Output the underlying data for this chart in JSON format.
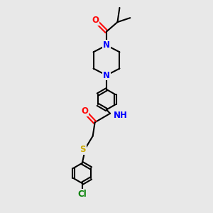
{
  "bg_color": "#e8e8e8",
  "bond_color": "#000000",
  "bond_width": 1.5,
  "atom_colors": {
    "N": "#0000FF",
    "O": "#FF0000",
    "S": "#CCAA00",
    "Cl": "#008000",
    "C": "#000000"
  },
  "font_size": 8.5,
  "fig_size": [
    3.0,
    3.0
  ],
  "dpi": 100
}
